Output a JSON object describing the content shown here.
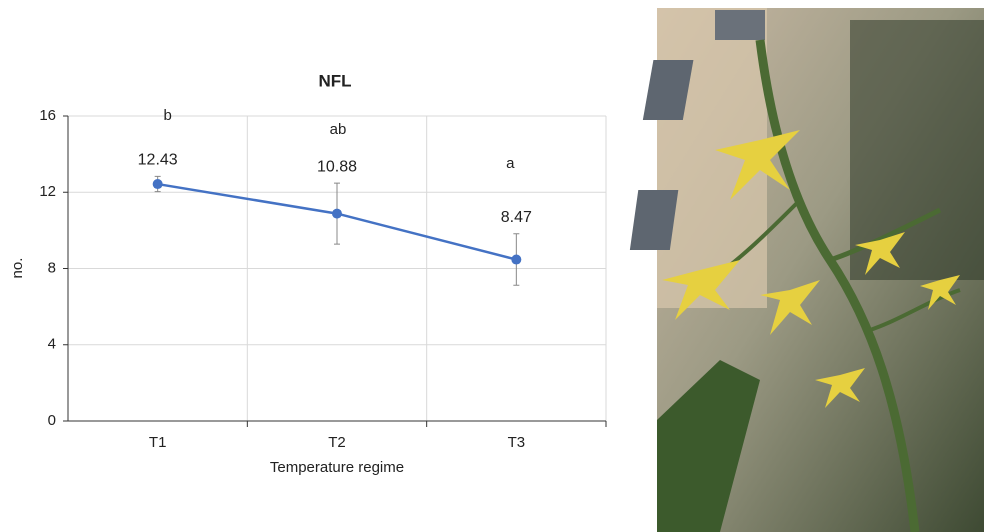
{
  "chart_data": {
    "type": "line",
    "title": "NFL",
    "x_label": "Temperature regime",
    "y_label": "no.",
    "categories": [
      "T1",
      "T2",
      "T3"
    ],
    "values": [
      12.43,
      10.88,
      8.47
    ],
    "errors": [
      0.4,
      1.6,
      1.35
    ],
    "annotations": [
      "b",
      "ab",
      "a"
    ],
    "color": "#4472c4",
    "ylim": [
      0,
      16
    ],
    "yticks": [
      0,
      4,
      8,
      12,
      16
    ],
    "grid": true
  }
}
